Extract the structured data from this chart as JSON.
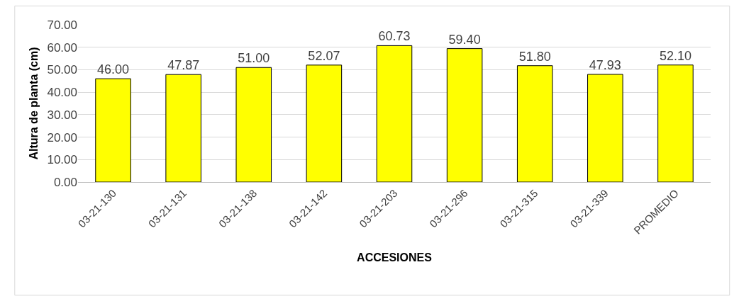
{
  "chart_data": {
    "type": "bar",
    "xlabel": "ACCESIONES",
    "ylabel": "Altura de planta (cm)",
    "categories": [
      "03-21-130",
      "03-21-131",
      "03-21-138",
      "03-21-142",
      "03-21-203",
      "03-21-296",
      "03-21-315",
      "03-21-339",
      "PROMEDIO"
    ],
    "values": [
      46.0,
      47.87,
      51.0,
      52.07,
      60.73,
      59.4,
      51.8,
      47.93,
      52.1
    ],
    "value_labels": [
      "46.00",
      "47.87",
      "51.00",
      "52.07",
      "60.73",
      "59.40",
      "51.80",
      "47.93",
      "52.10"
    ],
    "color": "#ffff00",
    "ylim": [
      0,
      70
    ],
    "yticks": [
      {
        "value": 0,
        "label": "0.00"
      },
      {
        "value": 10,
        "label": "10.00"
      },
      {
        "value": 20,
        "label": "20.00"
      },
      {
        "value": 30,
        "label": "30.00"
      },
      {
        "value": 40,
        "label": "40.00"
      },
      {
        "value": 50,
        "label": "50.00"
      },
      {
        "value": 60,
        "label": "60.00"
      },
      {
        "value": 70,
        "label": "70.00"
      }
    ],
    "grid": "y",
    "legend": false
  }
}
